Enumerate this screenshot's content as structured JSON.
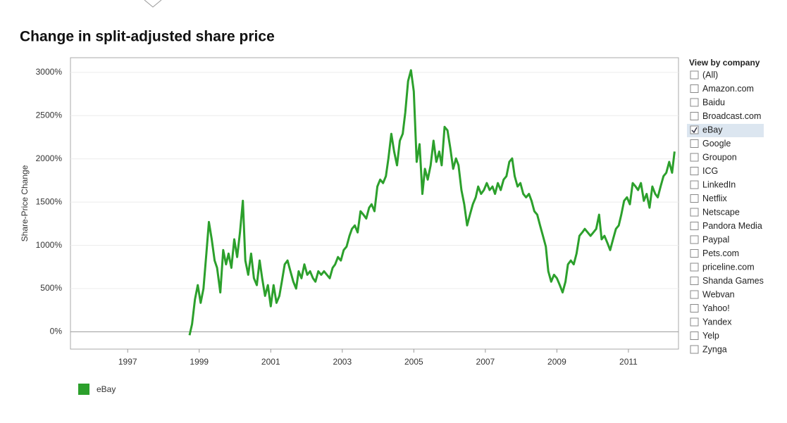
{
  "chart_data": {
    "type": "line",
    "title": "Change in split-adjusted share price",
    "y_label": "Share-Price Change",
    "xlim": [
      1995.4,
      2012.4
    ],
    "xticks": [
      1997,
      1999,
      2001,
      2003,
      2005,
      2007,
      2009,
      2011
    ],
    "ylim": [
      -200,
      3170
    ],
    "yticks": [
      {
        "value": 0,
        "label": "0%"
      },
      {
        "value": 500,
        "label": "500%"
      },
      {
        "value": 1000,
        "label": "1000%"
      },
      {
        "value": 1500,
        "label": "1500%"
      },
      {
        "value": 2000,
        "label": "2000%"
      },
      {
        "value": 2500,
        "label": "2500%"
      },
      {
        "value": 3000,
        "label": "3000%"
      }
    ],
    "grid": true,
    "x": [
      1998.73,
      1998.8,
      1998.88,
      1998.96,
      1999.04,
      1999.12,
      1999.2,
      1999.27,
      1999.35,
      1999.43,
      1999.5,
      1999.59,
      1999.67,
      1999.75,
      1999.82,
      1999.9,
      1999.98,
      2000.06,
      2000.14,
      2000.22,
      2000.29,
      2000.37,
      2000.45,
      2000.53,
      2000.61,
      2000.69,
      2000.76,
      2000.84,
      2000.92,
      2001.0,
      2001.08,
      2001.16,
      2001.24,
      2001.31,
      2001.39,
      2001.47,
      2001.55,
      2001.63,
      2001.71,
      2001.78,
      2001.86,
      2001.94,
      2002.02,
      2002.1,
      2002.18,
      2002.25,
      2002.33,
      2002.41,
      2002.49,
      2002.57,
      2002.65,
      2002.73,
      2002.8,
      2002.88,
      2002.96,
      2003.04,
      2003.12,
      2003.2,
      2003.27,
      2003.35,
      2003.43,
      2003.51,
      2003.59,
      2003.67,
      2003.75,
      2003.82,
      2003.9,
      2003.98,
      2004.06,
      2004.14,
      2004.22,
      2004.29,
      2004.37,
      2004.45,
      2004.53,
      2004.61,
      2004.69,
      2004.76,
      2004.84,
      2004.92,
      2005.0,
      2005.08,
      2005.16,
      2005.24,
      2005.31,
      2005.39,
      2005.47,
      2005.55,
      2005.63,
      2005.71,
      2005.78,
      2005.86,
      2005.94,
      2006.02,
      2006.1,
      2006.18,
      2006.25,
      2006.33,
      2006.41,
      2006.49,
      2006.57,
      2006.65,
      2006.73,
      2006.8,
      2006.88,
      2006.96,
      2007.04,
      2007.12,
      2007.2,
      2007.27,
      2007.35,
      2007.43,
      2007.51,
      2007.59,
      2007.67,
      2007.75,
      2007.82,
      2007.9,
      2007.98,
      2008.06,
      2008.14,
      2008.22,
      2008.29,
      2008.37,
      2008.45,
      2008.53,
      2008.61,
      2008.69,
      2008.76,
      2008.84,
      2008.92,
      2009.0,
      2009.08,
      2009.16,
      2009.24,
      2009.31,
      2009.39,
      2009.47,
      2009.55,
      2009.63,
      2009.71,
      2009.78,
      2009.86,
      2009.94,
      2010.02,
      2010.1,
      2010.18,
      2010.25,
      2010.33,
      2010.41,
      2010.49,
      2010.57,
      2010.65,
      2010.73,
      2010.8,
      2010.88,
      2010.96,
      2011.04,
      2011.12,
      2011.2,
      2011.27,
      2011.35,
      2011.43,
      2011.51,
      2011.59,
      2011.67,
      2011.75,
      2011.82,
      2011.9,
      2011.98,
      2012.06,
      2012.14,
      2012.22,
      2012.29
    ],
    "series": [
      {
        "name": "eBay",
        "color": "#2ca02c",
        "values": [
          -40,
          90,
          375,
          540,
          335,
          500,
          905,
          1270,
          1070,
          825,
          740,
          455,
          945,
          780,
          905,
          740,
          1070,
          865,
          1150,
          1515,
          825,
          660,
          905,
          620,
          540,
          825,
          620,
          415,
          540,
          295,
          540,
          335,
          415,
          580,
          780,
          825,
          700,
          580,
          500,
          700,
          620,
          780,
          660,
          700,
          620,
          580,
          700,
          660,
          700,
          660,
          620,
          740,
          780,
          865,
          825,
          945,
          985,
          1110,
          1190,
          1230,
          1150,
          1395,
          1355,
          1310,
          1435,
          1475,
          1395,
          1680,
          1760,
          1720,
          1800,
          2005,
          2290,
          2085,
          1925,
          2210,
          2290,
          2535,
          2900,
          3025,
          2780,
          1965,
          2170,
          1595,
          1885,
          1760,
          1925,
          2210,
          1965,
          2085,
          1925,
          2370,
          2330,
          2125,
          1885,
          2005,
          1925,
          1640,
          1475,
          1230,
          1355,
          1475,
          1555,
          1680,
          1595,
          1640,
          1720,
          1640,
          1680,
          1595,
          1720,
          1640,
          1760,
          1800,
          1965,
          2005,
          1800,
          1680,
          1720,
          1595,
          1555,
          1595,
          1515,
          1395,
          1355,
          1230,
          1110,
          985,
          700,
          580,
          660,
          620,
          540,
          455,
          580,
          780,
          825,
          780,
          905,
          1110,
          1150,
          1190,
          1150,
          1110,
          1150,
          1190,
          1355,
          1070,
          1110,
          1030,
          945,
          1070,
          1190,
          1230,
          1355,
          1515,
          1555,
          1475,
          1720,
          1680,
          1640,
          1720,
          1515,
          1595,
          1435,
          1680,
          1595,
          1555,
          1680,
          1800,
          1840,
          1965,
          1840,
          2085
        ]
      }
    ]
  },
  "filter": {
    "title": "View by company",
    "options": [
      "(All)",
      "Amazon.com",
      "Baidu",
      "Broadcast.com",
      "eBay",
      "Google",
      "Groupon",
      "ICG",
      "LinkedIn",
      "Netflix",
      "Netscape",
      "Pandora Media",
      "Paypal",
      "Pets.com",
      "priceline.com",
      "Shanda Games",
      "Webvan",
      "Yahoo!",
      "Yandex",
      "Yelp",
      "Zynga"
    ],
    "checked": [
      false,
      false,
      false,
      false,
      true,
      false,
      false,
      false,
      false,
      false,
      false,
      false,
      false,
      false,
      false,
      false,
      false,
      false,
      false,
      false,
      false
    ]
  }
}
